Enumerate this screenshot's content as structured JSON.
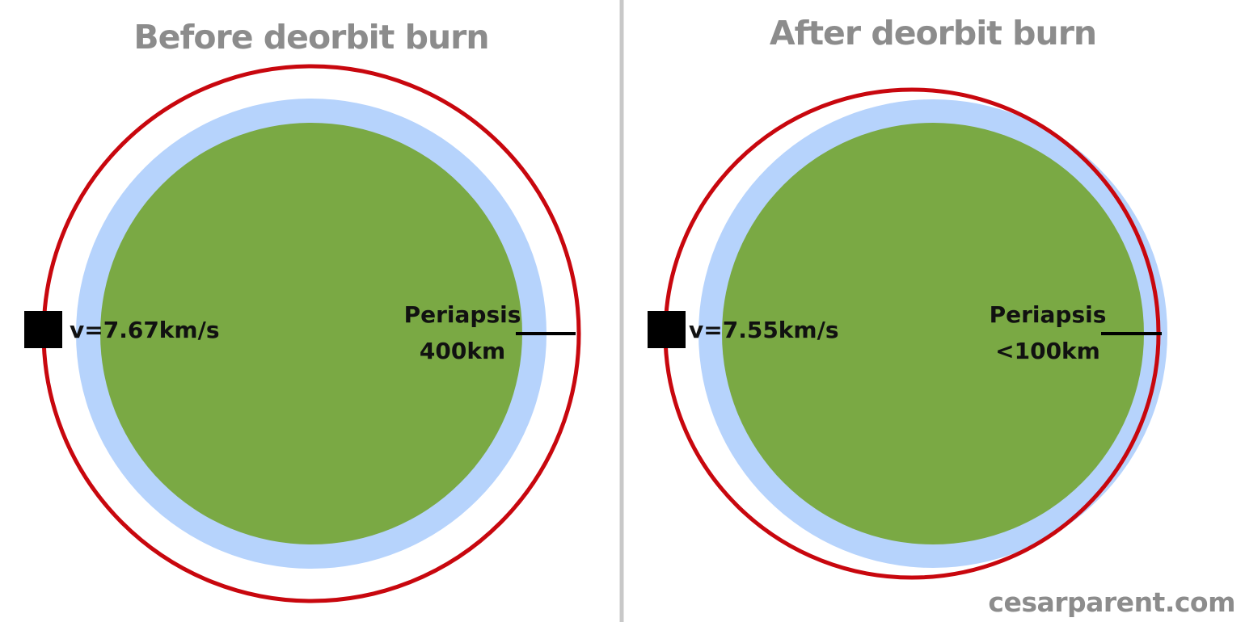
{
  "panels": [
    {
      "title": "Before deorbit burn",
      "velocity_label": "v=7.67km/s",
      "periapsis_label": "Periapsis",
      "periapsis_value": "400km"
    },
    {
      "title": "After deorbit burn",
      "velocity_label": "v=7.55km/s",
      "periapsis_label": "Periapsis",
      "periapsis_value": "<100km"
    }
  ],
  "credit": "cesarparent.com",
  "colors": {
    "planet": "#7aa944",
    "atmosphere": "#b6d3fc",
    "orbit": "#c8070e",
    "spacecraft": "#000000",
    "divider": "#c8c8c8",
    "title": "#8c8c8c"
  }
}
